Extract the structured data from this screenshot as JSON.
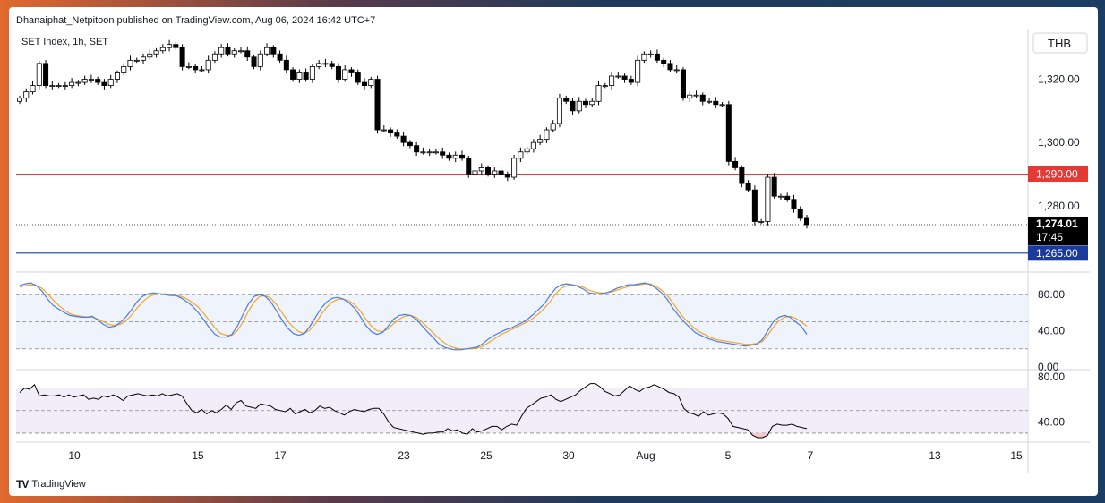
{
  "header": {
    "publisher": "Dhanaiphat_Netpitoon published on TradingView.com, Aug 06, 2024 16:42 UTC+7",
    "symbol_label": "SET Index, 1h, SET",
    "currency_button": "THB"
  },
  "footer": {
    "brand": "TradingView",
    "logo_icon": "tradingview-logo-icon"
  },
  "price_axis": {
    "ticks": [
      "1,320.00",
      "1,300.00",
      "1,280.00"
    ],
    "tick_values": [
      1320,
      1300,
      1280
    ],
    "last_price": "1,274.01",
    "countdown": "17:45",
    "resistance_label": "1,290.00",
    "support_label": "1,265.00"
  },
  "colors": {
    "background": "#ffffff",
    "candle_up": "#ffffff",
    "candle_down": "#000000",
    "candle_border": "#000000",
    "resistance_line": "#e53935",
    "support_line": "#1a3a9c",
    "stoch_k": "#4b7be8",
    "stoch_d": "#f5a623",
    "rsi_line": "#000000",
    "band_fill": "#eef3fc",
    "rsi_band_fill": "#f1eefa",
    "oversold_fill": "#f7c9c9"
  },
  "x_axis": {
    "labels": [
      "10",
      "15",
      "17",
      "23",
      "25",
      "30",
      "Aug",
      "5",
      "7",
      "13",
      "15"
    ]
  },
  "chart_data": [
    {
      "type": "candlestick",
      "title": "SET Index, 1h, SET",
      "ylim": [
        1259,
        1336
      ],
      "last_value": 1274.01,
      "horizontal_lines": [
        {
          "value": 1290,
          "color": "#e53935"
        },
        {
          "value": 1265,
          "color": "#1a3a9c"
        }
      ],
      "closes": [
        1314,
        1316,
        1318,
        1325,
        1318,
        1318,
        1318,
        1318,
        1319,
        1319,
        1320,
        1320,
        1319,
        1318,
        1320,
        1322,
        1324,
        1326,
        1326,
        1327,
        1328,
        1329,
        1330,
        1331,
        1330,
        1324,
        1324,
        1323,
        1323,
        1326,
        1328,
        1330,
        1328,
        1329,
        1329,
        1327,
        1324,
        1328,
        1330,
        1328,
        1326,
        1323,
        1320,
        1322,
        1320,
        1324,
        1325,
        1325,
        1324,
        1320,
        1323,
        1322,
        1319,
        1318,
        1320,
        1304,
        1304,
        1303,
        1302,
        1300,
        1299,
        1297,
        1297,
        1297,
        1297,
        1296,
        1295,
        1296,
        1295,
        1290,
        1291,
        1292,
        1290,
        1291,
        1290,
        1289,
        1295,
        1297,
        1298,
        1300,
        1301,
        1304,
        1306,
        1314,
        1313,
        1310,
        1313,
        1312,
        1313,
        1318,
        1318,
        1321,
        1321,
        1320,
        1319,
        1326,
        1328,
        1328,
        1326,
        1325,
        1323,
        1323,
        1314,
        1315,
        1315,
        1313,
        1313,
        1312,
        1312,
        1294,
        1292,
        1287,
        1285,
        1275,
        1275,
        1289,
        1283,
        1283,
        1282,
        1279,
        1276,
        1274
      ],
      "x_labels": [
        "10",
        "15",
        "17",
        "23",
        "25",
        "30",
        "Aug",
        "5",
        "7",
        "13",
        "15"
      ]
    },
    {
      "type": "line",
      "title": "",
      "ylim": [
        -2,
        101
      ],
      "ticks": [
        "80.00",
        "40.00",
        "0.00"
      ],
      "tick_values": [
        80,
        40,
        0
      ],
      "dashed_levels": [
        80,
        50,
        20
      ],
      "series": [
        {
          "values": [
            90,
            92,
            93,
            90,
            84,
            75,
            68,
            64,
            60,
            57,
            56,
            55,
            55,
            56,
            52,
            47,
            44,
            45,
            49,
            55,
            63,
            72,
            78,
            81,
            82,
            81,
            80,
            79,
            79,
            76,
            72,
            67,
            60,
            52,
            43,
            36,
            33,
            33,
            36,
            45,
            58,
            70,
            78,
            80,
            78,
            72,
            62,
            52,
            43,
            37,
            35,
            37,
            45,
            55,
            65,
            72,
            76,
            77,
            75,
            71,
            65,
            56,
            46,
            39,
            36,
            38,
            45,
            53,
            57,
            58,
            57,
            53,
            46,
            39,
            33,
            26,
            22,
            20,
            19,
            19,
            20,
            21,
            22,
            26,
            31,
            35,
            38,
            41,
            43,
            46,
            49,
            53,
            58,
            64,
            70,
            79,
            87,
            91,
            92,
            91,
            89,
            86,
            82,
            81,
            81,
            82,
            84,
            87,
            89,
            91,
            91,
            92,
            93,
            91,
            87,
            82,
            75,
            65,
            57,
            50,
            44,
            38,
            35,
            32,
            30,
            28,
            27,
            26,
            25,
            24,
            23,
            24,
            25,
            30,
            40,
            50,
            55,
            57,
            55,
            50,
            45,
            36
          ]
        },
        {
          "values": [
            88,
            90,
            91,
            90,
            87,
            81,
            74,
            68,
            63,
            59,
            57,
            56,
            55,
            55,
            53,
            50,
            47,
            46,
            47,
            51,
            57,
            65,
            72,
            77,
            80,
            81,
            81,
            80,
            79,
            78,
            75,
            71,
            66,
            59,
            51,
            43,
            37,
            35,
            35,
            40,
            50,
            62,
            72,
            78,
            79,
            76,
            69,
            60,
            51,
            44,
            39,
            37,
            41,
            48,
            58,
            66,
            72,
            75,
            75,
            73,
            69,
            62,
            53,
            45,
            40,
            39,
            42,
            48,
            53,
            56,
            57,
            55,
            50,
            44,
            38,
            32,
            27,
            23,
            21,
            20,
            20,
            20,
            21,
            23,
            27,
            31,
            35,
            38,
            41,
            44,
            47,
            50,
            54,
            59,
            65,
            72,
            81,
            87,
            90,
            91,
            90,
            88,
            85,
            83,
            82,
            82,
            83,
            85,
            87,
            89,
            90,
            91,
            92,
            92,
            89,
            85,
            79,
            71,
            62,
            54,
            48,
            42,
            38,
            35,
            32,
            30,
            29,
            28,
            27,
            26,
            25,
            25,
            26,
            28,
            35,
            44,
            51,
            55,
            56,
            54,
            50,
            45
          ]
        }
      ]
    },
    {
      "type": "line",
      "title": "",
      "ylim": [
        22,
        84
      ],
      "ticks": [
        "80.00",
        "40.00"
      ],
      "tick_values": [
        80,
        40
      ],
      "dashed_levels": [
        70,
        50,
        30
      ],
      "series": [
        {
          "values": [
            66,
            70,
            69,
            73,
            63,
            64,
            63,
            63,
            64,
            62,
            64,
            62,
            63,
            64,
            60,
            61,
            60,
            63,
            62,
            64,
            62,
            59,
            63,
            64,
            65,
            64,
            63,
            64,
            63,
            65,
            63,
            64,
            65,
            63,
            56,
            50,
            48,
            51,
            47,
            50,
            48,
            51,
            55,
            51,
            57,
            59,
            54,
            53,
            52,
            56,
            55,
            54,
            51,
            50,
            49,
            52,
            47,
            49,
            51,
            48,
            50,
            54,
            52,
            53,
            50,
            48,
            46,
            49,
            51,
            50,
            49,
            51,
            52,
            52,
            47,
            40,
            35,
            34,
            33,
            32,
            31,
            30,
            29,
            30,
            30,
            31,
            31,
            34,
            32,
            33,
            30,
            29,
            34,
            31,
            32,
            34,
            36,
            36,
            33,
            36,
            38,
            37,
            45,
            52,
            55,
            58,
            61,
            62,
            64,
            60,
            58,
            60,
            62,
            64,
            68,
            71,
            74,
            74,
            71,
            67,
            65,
            63,
            64,
            68,
            72,
            69,
            67,
            70,
            71,
            73,
            71,
            69,
            66,
            65,
            62,
            52,
            48,
            47,
            45,
            49,
            46,
            47,
            48,
            47,
            43,
            36,
            35,
            34,
            33,
            28,
            26,
            26,
            28,
            36,
            38,
            37,
            37,
            38,
            36,
            35,
            34
          ]
        }
      ]
    }
  ]
}
